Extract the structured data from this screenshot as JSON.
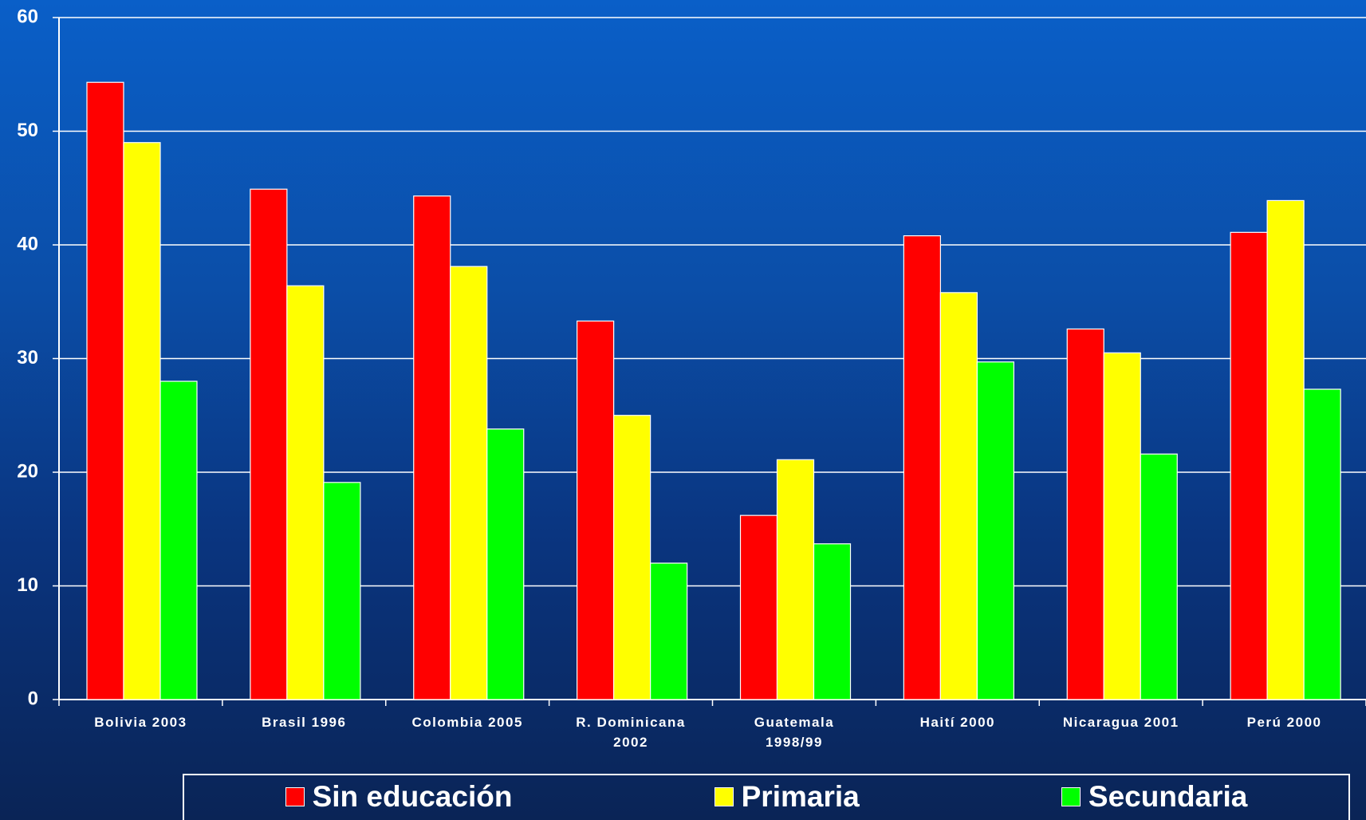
{
  "chart_data": {
    "type": "bar",
    "categories": [
      "Bolivia 2003",
      "Brasil 1996",
      "Colombia 2005",
      "R. Dominicana 2002",
      "Guatemala 1998/99",
      "Haití 2000",
      "Nicaragua 2001",
      "Perú 2000"
    ],
    "series": [
      {
        "name": "Sin educación",
        "color": "#ff0000",
        "values": [
          54.3,
          44.9,
          44.3,
          33.3,
          16.2,
          40.8,
          32.6,
          41.1
        ]
      },
      {
        "name": "Primaria",
        "color": "#ffff00",
        "values": [
          49.0,
          36.4,
          38.1,
          25.0,
          21.1,
          35.8,
          30.5,
          43.9
        ]
      },
      {
        "name": "Secundaria",
        "color": "#00ff00",
        "values": [
          28.0,
          19.1,
          23.8,
          12.0,
          13.7,
          29.7,
          21.6,
          27.3
        ]
      }
    ],
    "ylim": [
      0,
      60
    ],
    "yticks": [
      0,
      10,
      20,
      30,
      40,
      50,
      60
    ],
    "grid": true,
    "legend": "bottom"
  }
}
